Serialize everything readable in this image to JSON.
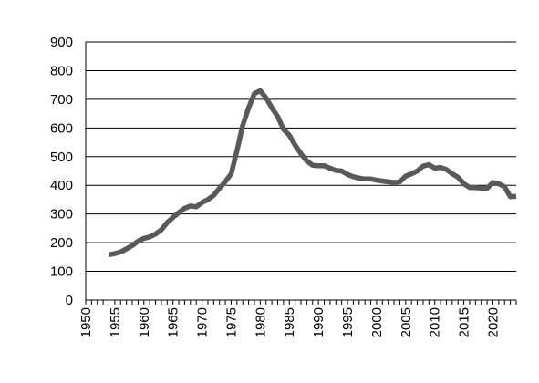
{
  "chart_data": {
    "type": "line",
    "title": "",
    "xlabel": "",
    "ylabel": "",
    "xlim": [
      1950,
      2024
    ],
    "ylim": [
      0,
      900
    ],
    "x_ticks": [
      "1950",
      "1955",
      "1960",
      "1965",
      "1970",
      "1975",
      "1980",
      "1985",
      "1990",
      "1995",
      "2000",
      "2005",
      "2010",
      "2015",
      "2020"
    ],
    "y_ticks": [
      "0",
      "100",
      "200",
      "300",
      "400",
      "500",
      "600",
      "700",
      "800",
      "900"
    ],
    "grid": "horizontal",
    "legend": "none",
    "line_color": "#595959",
    "series": [
      {
        "x": [
          1954,
          1955,
          1956,
          1957,
          1958,
          1959,
          1960,
          1961,
          1962,
          1963,
          1964,
          1965,
          1966,
          1967,
          1968,
          1969,
          1970,
          1971,
          1972,
          1973,
          1974,
          1975,
          1976,
          1977,
          1978,
          1979,
          1980,
          1981,
          1982,
          1983,
          1984,
          1985,
          1986,
          1987,
          1988,
          1989,
          1990,
          1991,
          1992,
          1993,
          1994,
          1995,
          1996,
          1997,
          1998,
          1999,
          2000,
          2001,
          2002,
          2003,
          2004,
          2005,
          2006,
          2007,
          2008,
          2009,
          2010,
          2011,
          2012,
          2013,
          2014,
          2015,
          2016,
          2017,
          2018,
          2019,
          2020,
          2021,
          2022,
          2023,
          2024
        ],
        "values": [
          158,
          162,
          168,
          178,
          190,
          205,
          215,
          220,
          230,
          245,
          270,
          288,
          305,
          320,
          328,
          325,
          340,
          350,
          365,
          390,
          413,
          440,
          520,
          610,
          670,
          720,
          730,
          705,
          670,
          640,
          595,
          575,
          540,
          510,
          485,
          470,
          468,
          468,
          460,
          452,
          450,
          438,
          430,
          425,
          422,
          422,
          418,
          415,
          412,
          410,
          412,
          432,
          440,
          450,
          467,
          472,
          460,
          462,
          455,
          440,
          428,
          405,
          392,
          392,
          390,
          390,
          410,
          405,
          395,
          360,
          362
        ]
      }
    ]
  }
}
